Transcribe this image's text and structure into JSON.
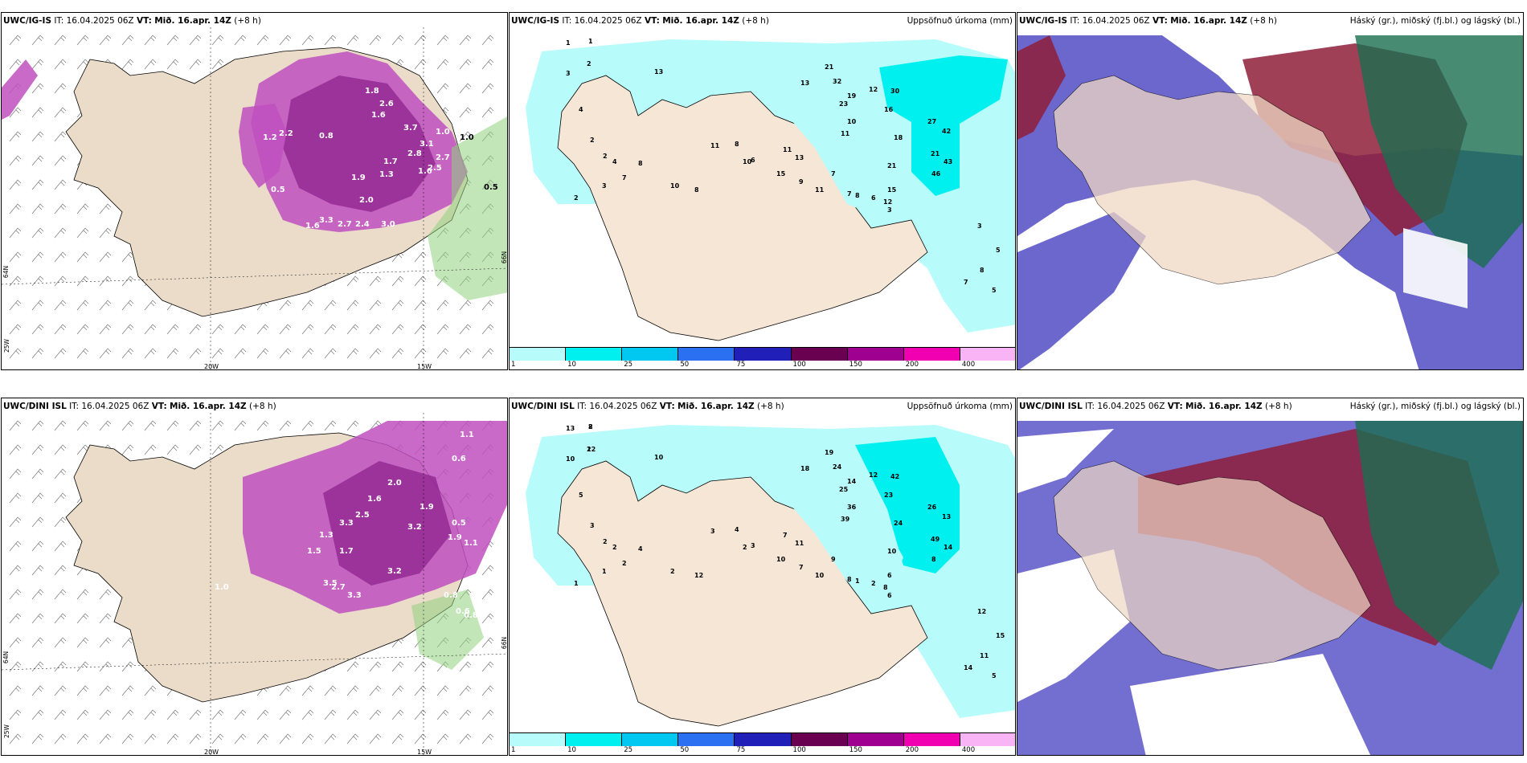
{
  "panels": {
    "p1": {
      "model": "UWC/IG-IS",
      "it_label": "IT:",
      "it": "16.04.2025 06Z",
      "vt_label": "VT:",
      "vt": "Mið. 16.apr. 14Z",
      "lead": "(+8 h)"
    },
    "p2": {
      "model": "UWC/IG-IS",
      "it_label": "IT:",
      "it": "16.04.2025 06Z",
      "vt_label": "VT:",
      "vt": "Mið. 16.apr. 14Z",
      "lead": "(+8 h)",
      "right_title": "Uppsöfnuð úrkoma (mm)"
    },
    "p3": {
      "model": "UWC/IG-IS",
      "it_label": "IT:",
      "it": "16.04.2025 06Z",
      "vt_label": "VT:",
      "vt": "Mið. 16.apr. 14Z",
      "lead": "(+8 h)",
      "right_title": "Háský (gr.), miðský (fj.bl.) og lágský (bl.)"
    },
    "p4": {
      "model": "UWC/DINI ISL",
      "it_label": "IT:",
      "it": "16.04.2025 06Z",
      "vt_label": "VT:",
      "vt": "Mið. 16.apr. 14Z",
      "lead": "(+8 h)"
    },
    "p5": {
      "model": "UWC/DINI ISL",
      "it_label": "IT:",
      "it": "16.04.2025 06Z",
      "vt_label": "VT:",
      "vt": "Mið. 16.apr. 14Z",
      "lead": "(+8 h)",
      "right_title": "Uppsöfnuð úrkoma (mm)"
    },
    "p6": {
      "model": "UWC/DINI ISL",
      "it_label": "IT:",
      "it": "16.04.2025 06Z",
      "vt_label": "VT:",
      "vt": "Mið. 16.apr. 14Z",
      "lead": "(+8 h)",
      "right_title": "Háský (gr.), miðský (fj.bl.) og lágský (bl.)"
    }
  },
  "axis_labels": {
    "lon_20w": "20W",
    "lon_15w": "15W",
    "lat_64n": "64N",
    "lat_66n": "66N",
    "lon_25w": "25W"
  },
  "colorbar": {
    "labels": [
      "1",
      "10",
      "25",
      "50",
      "75",
      "100",
      "150",
      "200",
      "400"
    ],
    "colors": [
      "#b7fbfb",
      "#00f0f0",
      "#00c8f0",
      "#2a70f0",
      "#2020b8",
      "#6a0050",
      "#a00090",
      "#f000b0",
      "#f8b4f4"
    ]
  },
  "precip_top": [
    "1",
    "2",
    "13",
    "13",
    "21",
    "32",
    "19",
    "23",
    "12",
    "30",
    "16",
    "10",
    "11",
    "18",
    "21",
    "27",
    "42",
    "43",
    "46",
    "21",
    "15",
    "12",
    "3",
    "5",
    "8",
    "7",
    "1",
    "3",
    "4",
    "2",
    "2",
    "4",
    "3",
    "2",
    "7",
    "8",
    "10",
    "8",
    "11",
    "8",
    "10",
    "6",
    "11",
    "13",
    "15",
    "9",
    "11",
    "7",
    "7",
    "8",
    "6",
    "3",
    "5"
  ],
  "precip_bottom": [
    "2",
    "2",
    "10",
    "18",
    "19",
    "24",
    "14",
    "25",
    "12",
    "42",
    "23",
    "36",
    "39",
    "24",
    "49",
    "26",
    "13",
    "14",
    "8",
    "10",
    "6",
    "8",
    "12",
    "15",
    "11",
    "14",
    "13",
    "10",
    "5",
    "3",
    "2",
    "2",
    "1",
    "1",
    "2",
    "4",
    "2",
    "12",
    "3",
    "4",
    "2",
    "3",
    "7",
    "11",
    "10",
    "7",
    "10",
    "9",
    "8",
    "1",
    "2",
    "6",
    "5",
    "8",
    "12"
  ],
  "snow_top": [
    "1.8",
    "2.6",
    "1.2",
    "2.2",
    "0.8",
    "1.6",
    "3.7",
    "3.1",
    "2.8",
    "1.6",
    "2.5",
    "2.7",
    "1.7",
    "1.9",
    "1.3",
    "2.0",
    "3.3",
    "2.7",
    "2.4",
    "3.0",
    "1.6",
    "0.5",
    "1.0",
    "0.5"
  ],
  "snow_bottom": [
    "1.1",
    "0.6",
    "1.9",
    "2.0",
    "1.6",
    "2.5",
    "3.3",
    "3.2",
    "1.3",
    "1.5",
    "1.7",
    "3.5",
    "2.7",
    "3.3",
    "3.2",
    "1.9",
    "0.8",
    "0.6",
    "0.8",
    "1.0",
    "0.5",
    "1.1"
  ],
  "pressure_labels_top": [
    "1.0",
    "0.5"
  ]
}
